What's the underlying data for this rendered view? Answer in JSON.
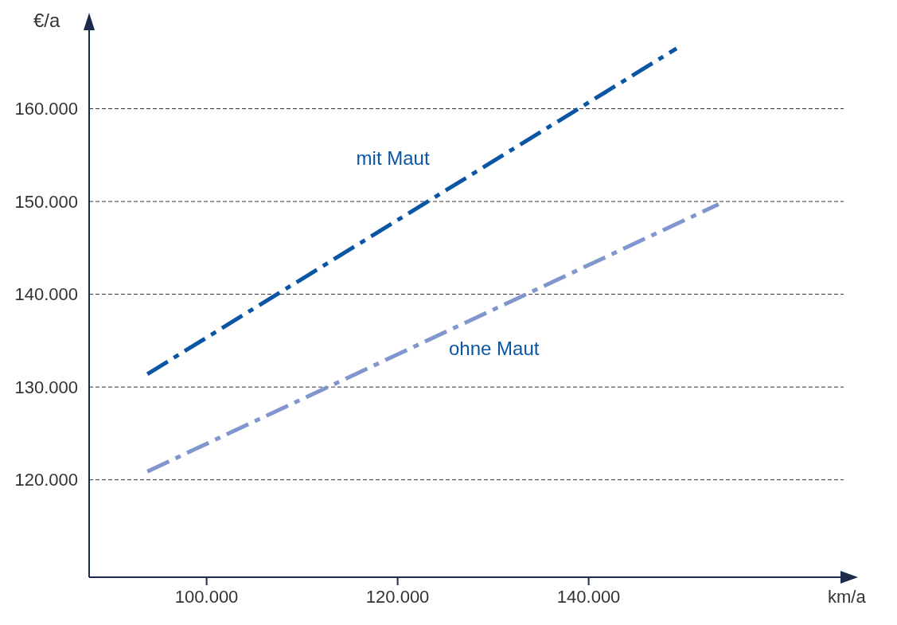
{
  "chart_data": {
    "type": "line",
    "xlabel": "km/a",
    "ylabel": "€/a",
    "series": [
      {
        "name": "mit Maut",
        "color": "#0a56a4",
        "x": [
          93800,
          149200
        ],
        "values": [
          131400,
          166500
        ]
      },
      {
        "name": "ohne Maut",
        "color": "#8196cc",
        "x": [
          93800,
          153600
        ],
        "values": [
          120900,
          149700
        ]
      }
    ],
    "xlim": [
      87700,
      166700
    ],
    "ylim": [
      109500,
      170000
    ],
    "xticks": [
      {
        "value": 100000,
        "label": "100.000"
      },
      {
        "value": 120000,
        "label": "120.000"
      },
      {
        "value": 140000,
        "label": "140.000"
      }
    ],
    "yticks": [
      {
        "value": 120000,
        "label": "120.000"
      },
      {
        "value": 130000,
        "label": "130.000"
      },
      {
        "value": 140000,
        "label": "140.000"
      },
      {
        "value": 150000,
        "label": "150.000"
      },
      {
        "value": 160000,
        "label": "160.000"
      }
    ],
    "grid": "y",
    "legend": false,
    "marker": "none",
    "line_style": "dashed"
  }
}
